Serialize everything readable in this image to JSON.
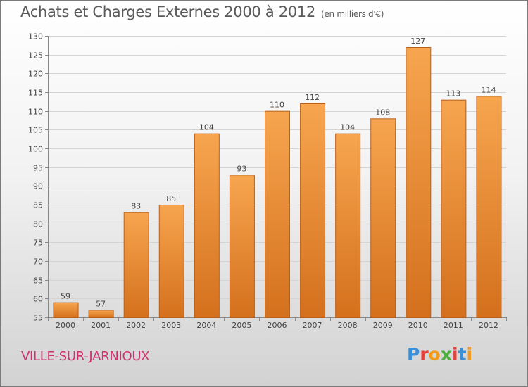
{
  "title": "Achats et Charges Externes 2000 à 2012",
  "subtitle": "(en milliers d'€)",
  "commune": "VILLE-SUR-JARNIOUX",
  "brand": {
    "letters": [
      {
        "char": "P",
        "color": "#3a8fd6"
      },
      {
        "char": "r",
        "color": "#e3403a"
      },
      {
        "char": "o",
        "color": "#f39a1e"
      },
      {
        "char": "x",
        "color": "#4caf3a"
      },
      {
        "char": "i",
        "color": "#e3403a"
      },
      {
        "char": "t",
        "color": "#3a8fd6"
      },
      {
        "char": "i",
        "color": "#f39a1e"
      }
    ]
  },
  "colors": {
    "bar_top": "#f7a54f",
    "bar_bottom": "#d4701d",
    "bar_stroke": "#b9601a",
    "grid": "#d4d4d4",
    "axis_text": "#444444",
    "commune": "#d0306e"
  },
  "chart_data": {
    "type": "bar",
    "title": "Achats et Charges Externes 2000 à 2012",
    "xlabel": "",
    "ylabel": "",
    "ylim": [
      55,
      130
    ],
    "yticks": [
      55,
      60,
      65,
      70,
      75,
      80,
      85,
      90,
      95,
      100,
      105,
      110,
      115,
      120,
      125,
      130
    ],
    "grid": true,
    "categories": [
      "2000",
      "2001",
      "2002",
      "2003",
      "2004",
      "2005",
      "2006",
      "2007",
      "2008",
      "2009",
      "2010",
      "2011",
      "2012"
    ],
    "values": [
      59,
      57,
      83,
      85,
      104,
      93,
      110,
      112,
      104,
      108,
      127,
      113,
      114
    ]
  }
}
